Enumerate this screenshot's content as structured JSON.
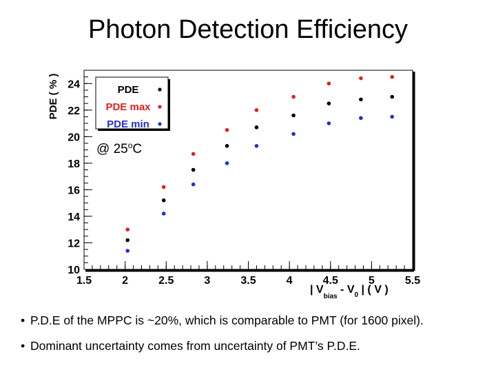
{
  "title": "Photon Detection Efficiency",
  "chart_data": {
    "type": "scatter",
    "ylabel": "PDE ( % )",
    "xlabel": "| V bias - V 0 | ( V )",
    "xlabel_parts": {
      "open": "| V",
      "sub1": "bias",
      "mid": " - V",
      "sub2": "0",
      "close": " | ( V )"
    },
    "xlim": [
      1.5,
      5.5
    ],
    "ylim": [
      10,
      25
    ],
    "x_ticks": [
      "1.5",
      "2",
      "2.5",
      "3",
      "3.5",
      "4",
      "4.5",
      "5",
      "5.5"
    ],
    "y_ticks": [
      "10",
      "12",
      "14",
      "16",
      "18",
      "20",
      "22",
      "24"
    ],
    "grid": false,
    "legend_position": "top-left",
    "annotation": {
      "prefix": "@ 25",
      "sup": "o",
      "suffix": "C"
    },
    "x": [
      2.03,
      2.47,
      2.83,
      3.24,
      3.6,
      4.05,
      4.48,
      4.87,
      5.25
    ],
    "series": [
      {
        "name": "PDE max",
        "color": "#e02020",
        "values": [
          13.0,
          16.2,
          18.7,
          20.5,
          22.0,
          23.0,
          24.0,
          24.4,
          24.5
        ]
      },
      {
        "name": "PDE",
        "color": "#000000",
        "values": [
          12.2,
          15.2,
          17.5,
          19.3,
          20.7,
          21.6,
          22.5,
          22.8,
          23.0
        ]
      },
      {
        "name": "PDE min",
        "color": "#2030d0",
        "values": [
          11.4,
          14.2,
          16.4,
          18.0,
          19.3,
          20.2,
          21.0,
          21.4,
          21.5
        ]
      }
    ],
    "legend_order": [
      1,
      0,
      2
    ]
  },
  "bullets": [
    "P.D.E of the MPPC is ~20%, which is comparable to PMT (for 1600 pixel).",
    "Dominant uncertainty comes from uncertainty of PMT’s P.D.E."
  ],
  "bullet_symbol": "•"
}
